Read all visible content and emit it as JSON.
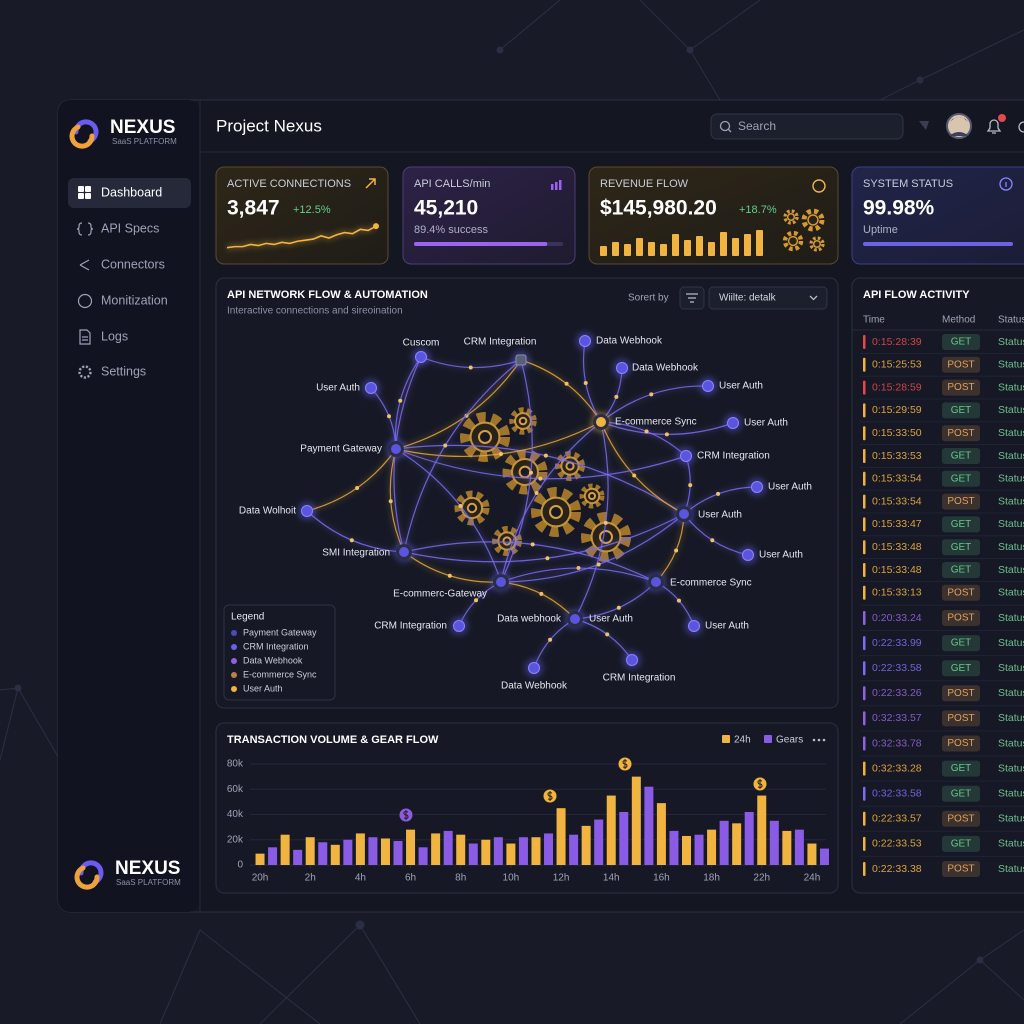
{
  "brand": {
    "name": "NEXUS",
    "tagline": "SaaS PLATFORM"
  },
  "nav": [
    "Dashboard",
    "API Specs",
    "Connectors",
    "Monitization",
    "Logs",
    "Settings"
  ],
  "header": {
    "title": "Project Nexus",
    "search": "Search"
  },
  "kpis": [
    {
      "label": "ACTIVE CONNECTIONS",
      "value": "3,847",
      "delta": "+12.5%",
      "trend": {
        "values": [
          4,
          5,
          5,
          7,
          6,
          8,
          7,
          9,
          8,
          10,
          11,
          12,
          15,
          13,
          16,
          18,
          17,
          21,
          20,
          24
        ],
        "ylim": [
          0,
          26
        ]
      }
    },
    {
      "label": "API CALLS/min",
      "value": "45,210",
      "sub": "89.4% success",
      "progress": 89.4,
      "progress_lim": [
        0,
        100
      ]
    },
    {
      "label": "REVENUE FLOW",
      "value": "$145,980.20",
      "delta": "+18.7%",
      "bars": {
        "values": [
          10,
          14,
          12,
          18,
          14,
          12,
          22,
          16,
          20,
          14,
          24,
          18,
          22,
          26
        ],
        "ylim": [
          0,
          30
        ]
      }
    },
    {
      "label": "SYSTEM STATUS",
      "value": "99.98%",
      "sub": "Uptime",
      "progress": 99.98,
      "progress_lim": [
        0,
        100
      ]
    }
  ],
  "network": {
    "title": "API NETWORK FLOW & AUTOMATION",
    "subtitle": "Interactive connections and sireoination",
    "sort_label": "Sorert by",
    "select": "Wiilte: detalk",
    "nodes": [
      {
        "label": "Cuscom"
      },
      {
        "label": "CRM Integration"
      },
      {
        "label": "Data Webhook"
      },
      {
        "label": "Data Webhook"
      },
      {
        "label": "User Auth"
      },
      {
        "label": "User Auth"
      },
      {
        "label": "E-commerce Sync"
      },
      {
        "label": "User Auth"
      },
      {
        "label": "Payment Gateway"
      },
      {
        "label": "CRM Integration"
      },
      {
        "label": "User Auth"
      },
      {
        "label": "Data Wolhoit"
      },
      {
        "label": "User Auth"
      },
      {
        "label": "User Auth"
      },
      {
        "label": "SMI Integration"
      },
      {
        "label": "E-commerce Sync"
      },
      {
        "label": "E-commerc-Gateway"
      },
      {
        "label": "User Auth"
      },
      {
        "label": "Data webhook"
      },
      {
        "label": "CRM Integration"
      },
      {
        "label": "User Auth"
      },
      {
        "label": "Data Webhook"
      },
      {
        "label": "CRM Integration"
      }
    ],
    "legend": {
      "title": "Legend",
      "items": [
        {
          "name": "Payment Gateway",
          "color": "#4a4db8"
        },
        {
          "name": "CRM Integration",
          "color": "#6a63e6"
        },
        {
          "name": "Data Webhook",
          "color": "#9262d8"
        },
        {
          "name": "E-commerce Sync",
          "color": "#b9804e"
        },
        {
          "name": "User Auth",
          "color": "#f0b240"
        }
      ]
    }
  },
  "activity": {
    "title": "API FLOW ACTIVITY",
    "columns": [
      "Time",
      "Method",
      "Status"
    ],
    "method_colors": {
      "GET": "#63c98a",
      "POST": "#e2a15a"
    },
    "rows": [
      {
        "time": "0:15:28:39",
        "method": "GET",
        "status": "Status",
        "accent": "#e5484d"
      },
      {
        "time": "0:15:25:53",
        "method": "POST",
        "status": "Status",
        "accent": "#f0b240"
      },
      {
        "time": "0:15:28:59",
        "method": "POST",
        "status": "Status",
        "accent": "#e5484d"
      },
      {
        "time": "0:15:29:59",
        "method": "GET",
        "status": "Status",
        "accent": "#f0b240"
      },
      {
        "time": "0:15:33:50",
        "method": "POST",
        "status": "Status",
        "accent": "#f0b240"
      },
      {
        "time": "0:15:33:53",
        "method": "GET",
        "status": "Status",
        "accent": "#f0b240"
      },
      {
        "time": "0:15:33:54",
        "method": "GET",
        "status": "Status",
        "accent": "#f0b240"
      },
      {
        "time": "0:15:33:54",
        "method": "POST",
        "status": "Status",
        "accent": "#f0b240"
      },
      {
        "time": "0:15:33:47",
        "method": "GET",
        "status": "Status",
        "accent": "#f0b240"
      },
      {
        "time": "0:15:33:48",
        "method": "GET",
        "status": "Status",
        "accent": "#f0b240"
      },
      {
        "time": "0:15:33:48",
        "method": "GET",
        "status": "Status",
        "accent": "#f0b240"
      },
      {
        "time": "0:15:33:13",
        "method": "POST",
        "status": "Status",
        "accent": "#f0b240"
      },
      {
        "time": "0:20:33.24",
        "method": "POST",
        "status": "Status",
        "accent": "#9262d8"
      },
      {
        "time": "0:22:33.99",
        "method": "GET",
        "status": "Status",
        "accent": "#7b6cf0"
      },
      {
        "time": "0:22:33.58",
        "method": "GET",
        "status": "Status",
        "accent": "#7b6cf0"
      },
      {
        "time": "0:22:33.26",
        "method": "POST",
        "status": "Status",
        "accent": "#9262d8"
      },
      {
        "time": "0:32:33.57",
        "method": "POST",
        "status": "Status",
        "accent": "#9262d8"
      },
      {
        "time": "0:32:33.78",
        "method": "POST",
        "status": "Status",
        "accent": "#9262d8"
      },
      {
        "time": "0:32:33.28",
        "method": "GET",
        "status": "Status",
        "accent": "#f0b240"
      },
      {
        "time": "0:32:33.58",
        "method": "GET",
        "status": "Status",
        "accent": "#7b6cf0"
      },
      {
        "time": "0:22:33.57",
        "method": "POST",
        "status": "Status",
        "accent": "#f0b240"
      },
      {
        "time": "0:22:33.53",
        "method": "GET",
        "status": "Status",
        "accent": "#f0b240"
      },
      {
        "time": "0:22:33.38",
        "method": "POST",
        "status": "Status",
        "accent": "#f0b240"
      }
    ]
  },
  "chart_data": {
    "type": "bar",
    "title": "TRANSACTION VOLUME & GEAR FLOW",
    "x": [
      0,
      0.5,
      1,
      1.5,
      2,
      2.5,
      3,
      3.5,
      4,
      4.5,
      5,
      5.5,
      6,
      6.5,
      7,
      7.5,
      8,
      8.5,
      9,
      9.5,
      10,
      10.5,
      11,
      11.5,
      12,
      12.5,
      13,
      13.5,
      14,
      14.5,
      15,
      15.5,
      16,
      16.5,
      17,
      17.5,
      18,
      18.5,
      19,
      19.5,
      20,
      20.5,
      21,
      21.5,
      22,
      22.5
    ],
    "series": [
      {
        "name": "24h",
        "color": "#f2b441",
        "values": [
          9000,
          null,
          24000,
          null,
          22000,
          null,
          16000,
          null,
          25000,
          null,
          21000,
          null,
          28000,
          null,
          25000,
          null,
          24000,
          null,
          20000,
          null,
          17000,
          null,
          22000,
          null,
          45000,
          null,
          31000,
          null,
          55000,
          null,
          70000,
          null,
          49000,
          null,
          23000,
          null,
          28000,
          null,
          33000,
          null,
          55000,
          null,
          27000,
          null,
          17000,
          null
        ]
      },
      {
        "name": "Gears",
        "color": "#8a5ce6",
        "values": [
          null,
          14000,
          null,
          12000,
          null,
          18000,
          null,
          20000,
          null,
          22000,
          null,
          19000,
          null,
          14000,
          null,
          27000,
          null,
          17000,
          null,
          22000,
          null,
          22000,
          null,
          25000,
          null,
          24000,
          null,
          36000,
          null,
          42000,
          null,
          62000,
          null,
          27000,
          null,
          24000,
          null,
          35000,
          null,
          42000,
          null,
          35000,
          null,
          28000,
          null,
          13000
        ]
      }
    ],
    "xlim": [
      -0.4,
      22.8
    ],
    "xticks": [
      {
        "value": 0,
        "label": "20h"
      },
      {
        "value": 2,
        "label": "2h"
      },
      {
        "value": 4,
        "label": "4h"
      },
      {
        "value": 6,
        "label": "6h"
      },
      {
        "value": 8,
        "label": "8h"
      },
      {
        "value": 10,
        "label": "10h"
      },
      {
        "value": 12,
        "label": "12h"
      },
      {
        "value": 14,
        "label": "14h"
      },
      {
        "value": 16,
        "label": "16h"
      },
      {
        "value": 18,
        "label": "18h"
      },
      {
        "value": 20,
        "label": "22h"
      },
      {
        "value": 22,
        "label": "24h"
      }
    ],
    "ylim": [
      0,
      80000
    ],
    "yticks": [
      0,
      {
        "value": 20000,
        "label": "20k"
      },
      {
        "value": 40000,
        "label": "40k"
      },
      {
        "value": 60000,
        "label": "60k"
      },
      {
        "value": 80000,
        "label": "80k"
      }
    ],
    "grid": true
  }
}
